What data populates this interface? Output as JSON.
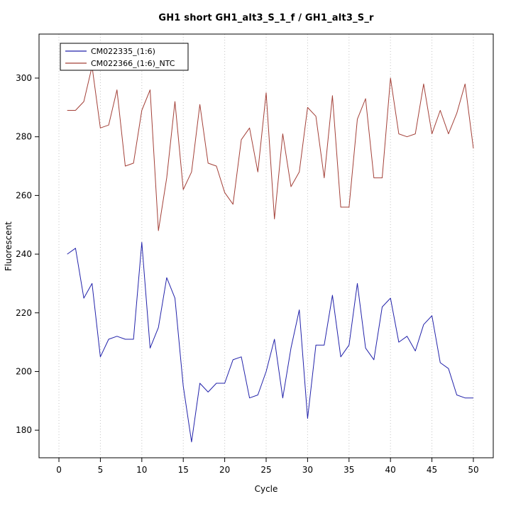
{
  "chart_data": {
    "type": "line",
    "title": "GH1 short GH1_alt3_S_1_f / GH1_alt3_S_r",
    "xlabel": "Cycle",
    "ylabel": "Fluorescent",
    "xlim": [
      -2.4,
      52.4
    ],
    "ylim": [
      170.6,
      315
    ],
    "xticks": [
      0,
      5,
      10,
      15,
      20,
      25,
      30,
      35,
      40,
      45,
      50
    ],
    "yticks": [
      180,
      200,
      220,
      240,
      260,
      280,
      300
    ],
    "grid": {
      "vertical_dotted": true,
      "color": "#c3c3c3"
    },
    "legend": {
      "position": "top-left",
      "border": "#000000"
    },
    "x": [
      1,
      2,
      3,
      4,
      5,
      6,
      7,
      8,
      9,
      10,
      11,
      12,
      13,
      14,
      15,
      16,
      17,
      18,
      19,
      20,
      21,
      22,
      23,
      24,
      25,
      26,
      27,
      28,
      29,
      30,
      31,
      32,
      33,
      34,
      35,
      36,
      37,
      38,
      39,
      40,
      41,
      42,
      43,
      44,
      45,
      46,
      47,
      48,
      49,
      50
    ],
    "series": [
      {
        "name": "CM022335_(1:6)",
        "color": "#2222AA",
        "values": [
          240,
          242,
          225,
          230,
          205,
          211,
          212,
          211,
          211,
          244,
          208,
          215,
          232,
          225,
          195,
          176,
          196,
          193,
          196,
          196,
          204,
          205,
          191,
          192,
          200,
          211,
          191,
          208,
          221,
          184,
          209,
          209,
          226,
          205,
          209,
          230,
          208,
          204,
          222,
          225,
          210,
          212,
          207,
          216,
          219,
          203,
          201,
          192,
          191,
          191
        ]
      },
      {
        "name": "CM022366_(1:6)_NTC",
        "color": "#A34038",
        "values": [
          289,
          289,
          292,
          304,
          283,
          284,
          296,
          270,
          271,
          289,
          296,
          248,
          266,
          292,
          262,
          268,
          291,
          271,
          270,
          261,
          257,
          279,
          283,
          268,
          295,
          252,
          281,
          263,
          268,
          290,
          287,
          266,
          294,
          256,
          256,
          286,
          293,
          266,
          266,
          300,
          281,
          280,
          281,
          298,
          281,
          289,
          281,
          288,
          298,
          276
        ]
      }
    ]
  }
}
